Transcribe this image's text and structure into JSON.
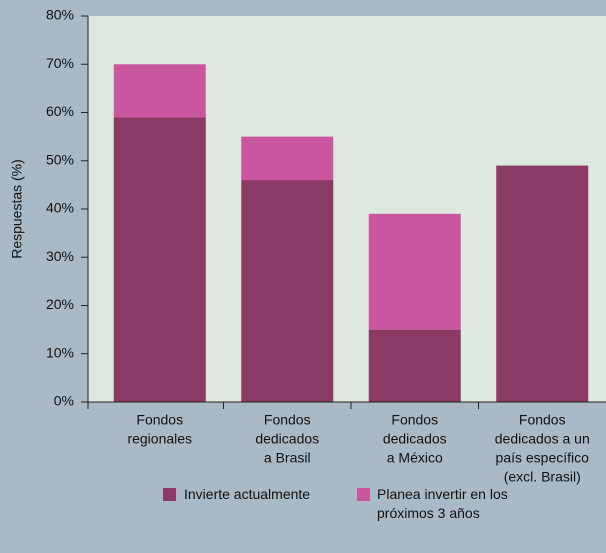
{
  "chart_data": {
    "type": "bar",
    "stacked": true,
    "y_label": "Respuestas (%)",
    "categories": [
      [
        "Fondos",
        "regionales"
      ],
      [
        "Fondos",
        "dedicados",
        "a Brasil"
      ],
      [
        "Fondos",
        "dedicados",
        "a México"
      ],
      [
        "Fondos",
        "dedicados a un",
        "país específico",
        "(excl. Brasil)"
      ]
    ],
    "series": [
      {
        "name": "Invierte actualmente",
        "color": "#8b3a66",
        "values": [
          59,
          46,
          15,
          49
        ]
      },
      {
        "name": "Planea invertir en los próximos 3 años",
        "color": "#c9569f",
        "values": [
          11,
          9,
          24,
          null
        ]
      }
    ],
    "ylim": [
      0,
      80
    ],
    "yticks": [
      {
        "value": 0,
        "label": "0%"
      },
      {
        "value": 10,
        "label": "10%"
      },
      {
        "value": 20,
        "label": "20%"
      },
      {
        "value": 30,
        "label": "30%"
      },
      {
        "value": 40,
        "label": "40%"
      },
      {
        "value": 50,
        "label": "50%"
      },
      {
        "value": 60,
        "label": "60%"
      },
      {
        "value": 70,
        "label": "70%"
      },
      {
        "value": 80,
        "label": "80%"
      }
    ],
    "grid": false
  }
}
